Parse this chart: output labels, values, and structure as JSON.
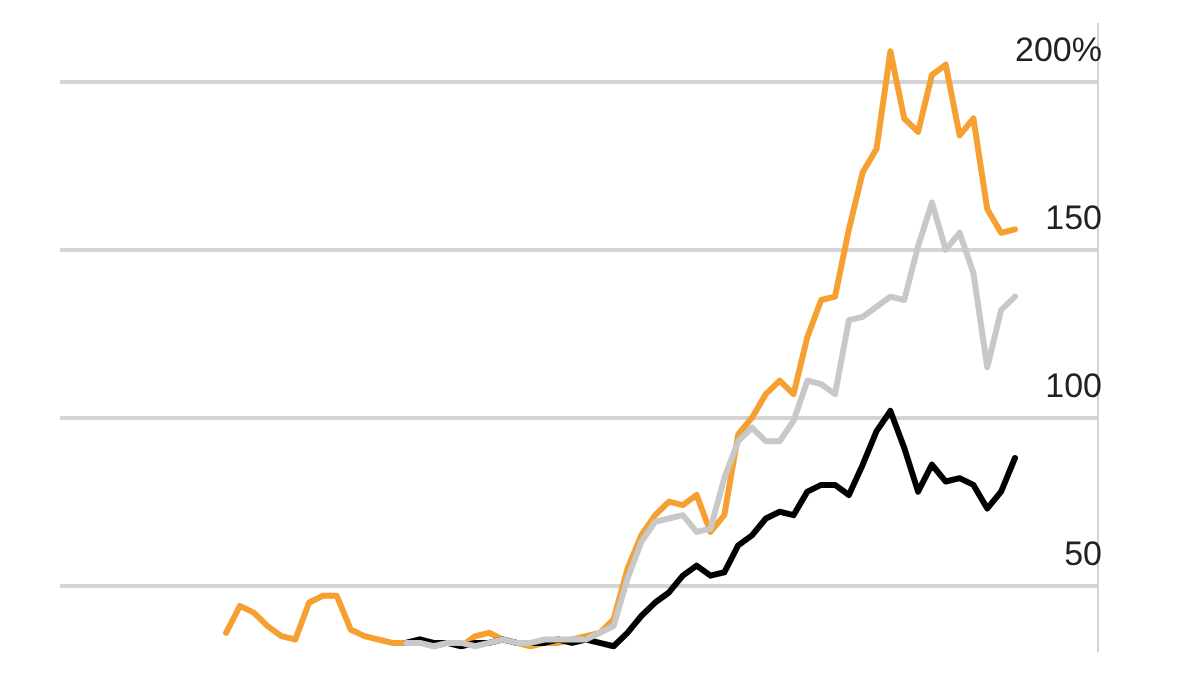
{
  "chart_data": {
    "type": "line",
    "categories": [
      null,
      null,
      null,
      null,
      null,
      null,
      null,
      null,
      null,
      null,
      null,
      null,
      null,
      null,
      null,
      null,
      null,
      null,
      null,
      null,
      null,
      null,
      null,
      null,
      null,
      null,
      null,
      null,
      null,
      null,
      null,
      null,
      null,
      null,
      null,
      null,
      null,
      null,
      null,
      null,
      null,
      null,
      null,
      null,
      null,
      null,
      null,
      null,
      null,
      null,
      null,
      null,
      null,
      null,
      null,
      null,
      null,
      null,
      null,
      null,
      null,
      null,
      null,
      null,
      null,
      null,
      null,
      null,
      null,
      null,
      null,
      null,
      null,
      null,
      null,
      null
    ],
    "series": [
      {
        "color": "#c8c8c8",
        "values": [
          null,
          null,
          null,
          null,
          null,
          null,
          null,
          null,
          null,
          null,
          null,
          null,
          null,
          null,
          null,
          null,
          null,
          null,
          null,
          null,
          null,
          null,
          null,
          null,
          null,
          33,
          33,
          32,
          33,
          33,
          32,
          33,
          34,
          33,
          33,
          34,
          34,
          34,
          34,
          36,
          38,
          52,
          63,
          69,
          70,
          71,
          66,
          67,
          82,
          93,
          97,
          93,
          93,
          99,
          111,
          110,
          107,
          129,
          130,
          133,
          136,
          135,
          151,
          164,
          150,
          155,
          143,
          115,
          132,
          136,
          null,
          null,
          null,
          null,
          null,
          null
        ]
      },
      {
        "color": "#000000",
        "values": [
          null,
          null,
          null,
          null,
          null,
          null,
          null,
          null,
          null,
          null,
          null,
          null,
          null,
          null,
          null,
          null,
          null,
          null,
          null,
          null,
          null,
          null,
          null,
          null,
          null,
          33,
          34,
          33,
          33,
          32,
          33,
          33,
          34,
          33,
          33,
          33,
          34,
          33,
          34,
          33,
          32,
          36,
          41,
          45,
          48,
          53,
          56,
          53,
          54,
          62,
          65,
          70,
          72,
          71,
          78,
          80,
          80,
          77,
          86,
          96,
          102,
          91,
          78,
          86,
          81,
          82,
          80,
          73,
          78,
          88,
          null,
          null,
          null,
          null,
          null,
          null
        ]
      },
      {
        "color": "#f5a030",
        "values": [
          null,
          null,
          null,
          null,
          null,
          null,
          null,
          null,
          null,
          null,
          null,
          null,
          36,
          44,
          42,
          38,
          35,
          34,
          45,
          47,
          47,
          37,
          35,
          34,
          33,
          33,
          34,
          32,
          33,
          32,
          35,
          36,
          34,
          33,
          32,
          33,
          33,
          34,
          35,
          36,
          40,
          55,
          65,
          71,
          75,
          74,
          77,
          66,
          71,
          95,
          100,
          107,
          111,
          107,
          124,
          135,
          136,
          156,
          173,
          180,
          209,
          189,
          185,
          202,
          205,
          184,
          189,
          162,
          155,
          156,
          null,
          null,
          null,
          null,
          null,
          null
        ]
      }
    ],
    "ylim": [
      31,
      217
    ],
    "yticks": [
      50,
      100,
      150,
      {
        "value": 200,
        "label": "200%"
      }
    ],
    "grid": "y",
    "tick_labels": "y"
  }
}
